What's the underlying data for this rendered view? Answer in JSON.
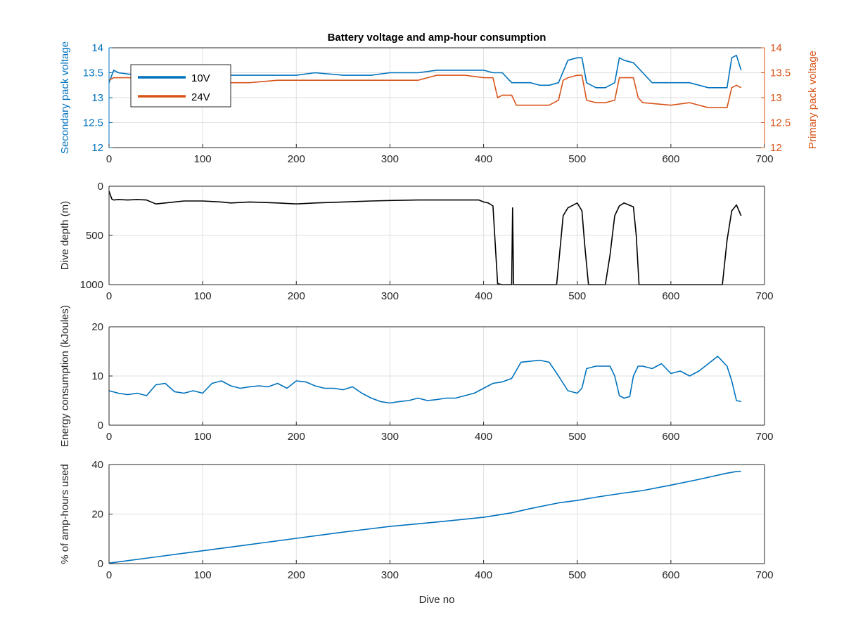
{
  "chart_data": [
    {
      "type": "line",
      "title": "Battery voltage and amp-hour consumption",
      "xlabel": "",
      "ylabel": "Secondary pack voltage",
      "ylabel_right": "Primary pack voltage",
      "xlim": [
        0,
        700
      ],
      "ylim": [
        12,
        14
      ],
      "ylim_right": [
        12,
        14
      ],
      "xticks": [
        "0",
        "100",
        "200",
        "300",
        "400",
        "500",
        "600",
        "700"
      ],
      "yticks": [
        "12",
        "12.5",
        "13",
        "13.5",
        "14"
      ],
      "yticks_right": [
        "12",
        "12.5",
        "13",
        "13.5",
        "14"
      ],
      "grid": true,
      "legend_position": "top-left",
      "series": [
        {
          "name": "10V",
          "axis": "left",
          "color": "#0072BD",
          "x": [
            0,
            5,
            10,
            30,
            50,
            80,
            100,
            120,
            150,
            180,
            200,
            220,
            250,
            280,
            300,
            330,
            350,
            380,
            400,
            410,
            420,
            430,
            440,
            450,
            460,
            470,
            480,
            490,
            500,
            505,
            510,
            520,
            530,
            540,
            545,
            550,
            560,
            570,
            580,
            600,
            620,
            640,
            660,
            665,
            670,
            675
          ],
          "y": [
            13.3,
            13.55,
            13.5,
            13.45,
            13.5,
            13.5,
            13.5,
            13.45,
            13.45,
            13.45,
            13.45,
            13.5,
            13.45,
            13.45,
            13.5,
            13.5,
            13.55,
            13.55,
            13.55,
            13.5,
            13.5,
            13.3,
            13.3,
            13.3,
            13.25,
            13.25,
            13.3,
            13.75,
            13.8,
            13.8,
            13.3,
            13.2,
            13.2,
            13.3,
            13.8,
            13.75,
            13.7,
            13.5,
            13.3,
            13.3,
            13.3,
            13.2,
            13.2,
            13.8,
            13.85,
            13.55
          ]
        },
        {
          "name": "24V",
          "axis": "right",
          "color": "#D95319",
          "x": [
            0,
            5,
            10,
            30,
            50,
            80,
            100,
            120,
            150,
            180,
            200,
            220,
            250,
            280,
            300,
            330,
            350,
            380,
            400,
            410,
            415,
            420,
            430,
            435,
            450,
            470,
            480,
            485,
            490,
            500,
            505,
            510,
            520,
            530,
            540,
            545,
            550,
            560,
            565,
            570,
            600,
            620,
            640,
            650,
            660,
            665,
            670,
            675
          ],
          "y": [
            13.35,
            13.4,
            13.4,
            13.4,
            13.35,
            13.35,
            13.3,
            13.3,
            13.3,
            13.35,
            13.35,
            13.35,
            13.35,
            13.35,
            13.35,
            13.35,
            13.45,
            13.45,
            13.4,
            13.4,
            13.0,
            13.05,
            13.05,
            12.85,
            12.85,
            12.85,
            12.95,
            13.35,
            13.4,
            13.45,
            13.45,
            12.95,
            12.9,
            12.9,
            12.95,
            13.4,
            13.4,
            13.4,
            13.0,
            12.9,
            12.85,
            12.9,
            12.8,
            12.8,
            12.8,
            13.2,
            13.25,
            13.2
          ]
        }
      ]
    },
    {
      "type": "line",
      "xlabel": "",
      "ylabel": "Dive depth (m)",
      "xlim": [
        0,
        700
      ],
      "ylim": [
        0,
        1000
      ],
      "y_reversed": true,
      "xticks": [
        "0",
        "100",
        "200",
        "300",
        "400",
        "500",
        "600",
        "700"
      ],
      "yticks": [
        "0",
        "500",
        "1000"
      ],
      "grid": true,
      "series": [
        {
          "color": "#000000",
          "x": [
            0,
            3,
            5,
            10,
            20,
            30,
            40,
            50,
            60,
            80,
            100,
            120,
            130,
            150,
            180,
            200,
            220,
            250,
            280,
            300,
            330,
            360,
            380,
            395,
            400,
            405,
            410,
            415,
            420,
            425,
            430,
            431,
            432,
            433,
            435,
            440,
            460,
            478,
            480,
            485,
            490,
            500,
            505,
            508,
            512,
            520,
            530,
            535,
            540,
            545,
            550,
            560,
            563,
            566,
            580,
            600,
            620,
            640,
            655,
            660,
            665,
            670,
            675
          ],
          "y": [
            50,
            130,
            140,
            135,
            140,
            135,
            140,
            180,
            170,
            150,
            150,
            160,
            170,
            160,
            170,
            180,
            170,
            160,
            150,
            145,
            140,
            140,
            140,
            140,
            160,
            170,
            200,
            990,
            1000,
            1000,
            1000,
            220,
            1000,
            1000,
            1000,
            1000,
            1000,
            1000,
            800,
            300,
            220,
            170,
            250,
            600,
            1000,
            1000,
            1000,
            700,
            300,
            200,
            170,
            210,
            500,
            1000,
            1000,
            1000,
            1000,
            1000,
            1000,
            550,
            250,
            190,
            300
          ]
        }
      ]
    },
    {
      "type": "line",
      "xlabel": "",
      "ylabel": "Energy consumption (kJoules)",
      "xlim": [
        0,
        700
      ],
      "ylim": [
        0,
        20
      ],
      "xticks": [
        "0",
        "100",
        "200",
        "300",
        "400",
        "500",
        "600",
        "700"
      ],
      "yticks": [
        "0",
        "10",
        "20"
      ],
      "grid": true,
      "series": [
        {
          "color": "#0072BD",
          "x": [
            0,
            10,
            20,
            30,
            40,
            50,
            60,
            70,
            80,
            90,
            100,
            110,
            120,
            130,
            140,
            150,
            160,
            170,
            180,
            190,
            200,
            210,
            220,
            230,
            240,
            250,
            260,
            270,
            280,
            290,
            300,
            310,
            320,
            330,
            340,
            350,
            360,
            370,
            380,
            390,
            400,
            410,
            420,
            430,
            440,
            460,
            465,
            470,
            480,
            490,
            500,
            505,
            510,
            520,
            530,
            535,
            540,
            545,
            550,
            556,
            560,
            565,
            570,
            580,
            590,
            600,
            610,
            620,
            630,
            640,
            650,
            660,
            665,
            670,
            675
          ],
          "y": [
            7,
            6.5,
            6.2,
            6.5,
            6.0,
            8.2,
            8.5,
            6.8,
            6.5,
            7.0,
            6.5,
            8.5,
            9.0,
            8.0,
            7.5,
            7.8,
            8.0,
            7.8,
            8.5,
            7.5,
            9.0,
            8.8,
            8.0,
            7.5,
            7.5,
            7.2,
            7.8,
            6.5,
            5.5,
            4.8,
            4.5,
            4.8,
            5.0,
            5.5,
            5.0,
            5.2,
            5.5,
            5.5,
            6.0,
            6.5,
            7.5,
            8.5,
            8.8,
            9.5,
            12.8,
            13.2,
            13.0,
            12.8,
            10.0,
            7.0,
            6.5,
            7.5,
            11.5,
            12.0,
            12.0,
            12.0,
            10.0,
            6.0,
            5.5,
            5.8,
            10.0,
            12.0,
            12.0,
            11.5,
            12.5,
            10.5,
            11.0,
            10.0,
            11.0,
            12.5,
            14.0,
            12.0,
            9.0,
            5.0,
            4.8
          ]
        }
      ]
    },
    {
      "type": "line",
      "xlabel": "Dive no",
      "ylabel": "% of amp-hours used",
      "xlim": [
        0,
        700
      ],
      "ylim": [
        0,
        40
      ],
      "xticks": [
        "0",
        "100",
        "200",
        "300",
        "400",
        "500",
        "600",
        "700"
      ],
      "yticks": [
        "0",
        "20",
        "40"
      ],
      "grid": true,
      "series": [
        {
          "color": "#0072BD",
          "x": [
            0,
            50,
            100,
            150,
            200,
            250,
            300,
            350,
            400,
            430,
            450,
            480,
            500,
            520,
            550,
            570,
            600,
            630,
            660,
            670,
            675
          ],
          "y": [
            0.2,
            2.7,
            5.2,
            7.7,
            10.2,
            12.7,
            15.0,
            16.8,
            18.7,
            20.5,
            22.2,
            24.5,
            25.5,
            26.8,
            28.5,
            29.5,
            31.7,
            34.0,
            36.5,
            37.2,
            37.3
          ]
        }
      ]
    }
  ]
}
